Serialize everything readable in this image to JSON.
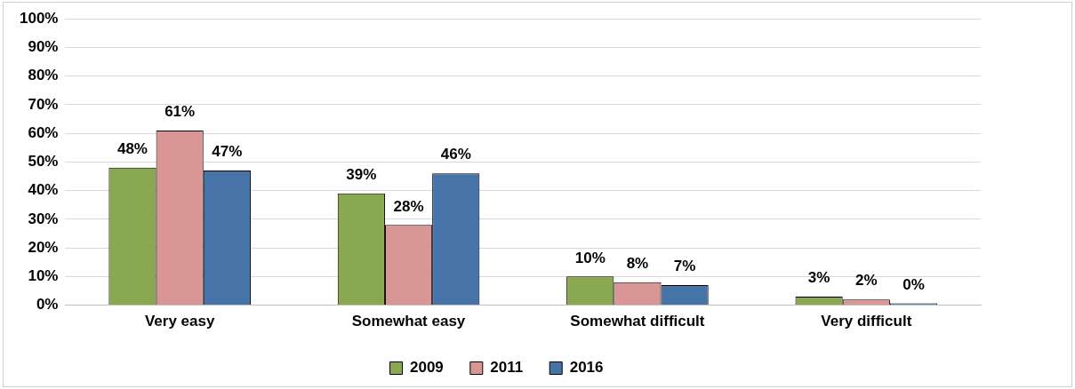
{
  "chart_data": {
    "type": "bar",
    "categories": [
      "Very easy",
      "Somewhat easy",
      "Somewhat difficult",
      "Very difficult"
    ],
    "series": [
      {
        "name": "2009",
        "color": "#8aa84f",
        "values": [
          48,
          39,
          10,
          3
        ],
        "value_labels": [
          "48%",
          "39%",
          "10%",
          "3%"
        ]
      },
      {
        "name": "2011",
        "color": "#d99694",
        "values": [
          61,
          28,
          8,
          2
        ],
        "value_labels": [
          "61%",
          "28%",
          "8%",
          "2%"
        ]
      },
      {
        "name": "2016",
        "color": "#4673a8",
        "values": [
          47,
          46,
          7,
          0
        ],
        "value_labels": [
          "47%",
          "46%",
          "7%",
          "0%"
        ]
      }
    ],
    "ylim": [
      0,
      100
    ],
    "yticks": [
      {
        "value": 0,
        "label": "0%"
      },
      {
        "value": 10,
        "label": "10%"
      },
      {
        "value": 20,
        "label": "20%"
      },
      {
        "value": 30,
        "label": "30%"
      },
      {
        "value": 40,
        "label": "40%"
      },
      {
        "value": 50,
        "label": "50%"
      },
      {
        "value": 60,
        "label": "60%"
      },
      {
        "value": 70,
        "label": "70%"
      },
      {
        "value": 80,
        "label": "80%"
      },
      {
        "value": 90,
        "label": "90%"
      },
      {
        "value": 100,
        "label": "100%"
      }
    ],
    "grid": "y",
    "legend": "bottom"
  }
}
